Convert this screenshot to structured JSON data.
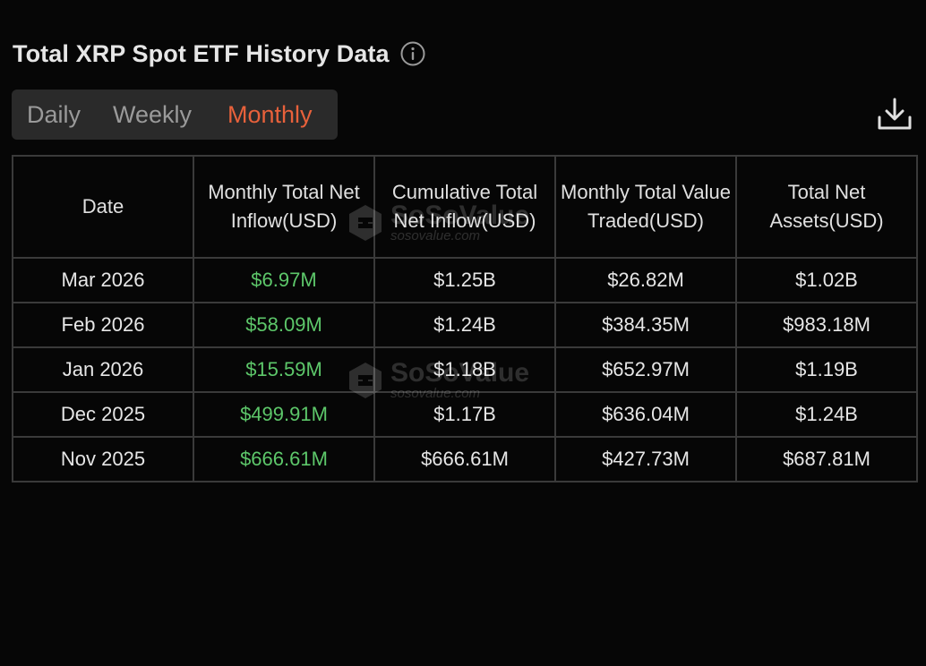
{
  "header": {
    "title": "Total XRP Spot ETF History Data",
    "info_icon": "info-circle-icon"
  },
  "tabs": [
    {
      "label": "Daily",
      "active": false
    },
    {
      "label": "Weekly",
      "active": false
    },
    {
      "label": "Monthly",
      "active": true
    }
  ],
  "toolbar": {
    "download_icon": "download-icon"
  },
  "colors": {
    "accent_active_tab": "#e8613b",
    "positive_value": "#5dc76a",
    "background": "#060606"
  },
  "table": {
    "columns": [
      "Date",
      "Monthly Total Net Inflow(USD)",
      "Cumulative Total Net Inflow(USD)",
      "Monthly Total Value Traded(USD)",
      "Total Net Assets(USD)"
    ],
    "rows": [
      {
        "date": "Mar 2026",
        "net_inflow": "$6.97M",
        "cumulative": "$1.25B",
        "value_traded": "$26.82M",
        "net_assets": "$1.02B"
      },
      {
        "date": "Feb 2026",
        "net_inflow": "$58.09M",
        "cumulative": "$1.24B",
        "value_traded": "$384.35M",
        "net_assets": "$983.18M"
      },
      {
        "date": "Jan 2026",
        "net_inflow": "$15.59M",
        "cumulative": "$1.18B",
        "value_traded": "$652.97M",
        "net_assets": "$1.19B"
      },
      {
        "date": "Dec 2025",
        "net_inflow": "$499.91M",
        "cumulative": "$1.17B",
        "value_traded": "$636.04M",
        "net_assets": "$1.24B"
      },
      {
        "date": "Nov 2025",
        "net_inflow": "$666.61M",
        "cumulative": "$666.61M",
        "value_traded": "$427.73M",
        "net_assets": "$687.81M"
      }
    ]
  },
  "watermark": {
    "brand": "SoSoValue",
    "url": "sosovalue.com"
  }
}
